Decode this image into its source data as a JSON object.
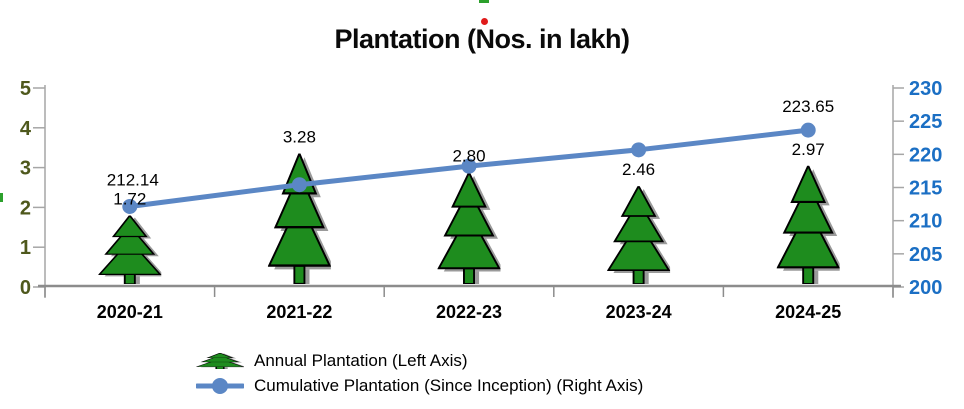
{
  "title": "Plantation (Nos. in lakh)",
  "colors": {
    "tree_green": "#1e8c1e",
    "tree_outline": "#000000",
    "tree_shadow": "#9a9a9a",
    "line_blue": "#5b87c5",
    "left_axis_label": "#4e581c",
    "right_axis_label": "#1b6fc4",
    "axis_line_gray": "#a6a6a6",
    "category_axis_gray": "#8c8c8c",
    "data_label": "#000000",
    "red_dot": "#e01b1b",
    "speck_green": "#2ca02c"
  },
  "chart_data": {
    "type": "combo",
    "categories": [
      "2020-21",
      "2021-22",
      "2022-23",
      "2023-24",
      "2024-25"
    ],
    "series": [
      {
        "name": "Annual Plantation (Left Axis)",
        "type": "pictograph-bar",
        "marker": "pine-tree",
        "axis": "left",
        "values": [
          1.72,
          3.28,
          2.8,
          2.46,
          2.97
        ],
        "labels": [
          "1.72",
          "3.28",
          "2.80",
          "2.46",
          "2.97"
        ]
      },
      {
        "name": "Cumulative Plantation (Since Inception) (Right Axis)",
        "type": "line",
        "axis": "right",
        "values": [
          212.14,
          215.42,
          218.22,
          220.68,
          223.65
        ],
        "first_label": "212.14",
        "last_label": "223.65"
      }
    ],
    "left_axis": {
      "min": 0,
      "max": 5,
      "step": 1,
      "ticks": [
        "0",
        "1",
        "2",
        "3",
        "4",
        "5"
      ]
    },
    "right_axis": {
      "min": 200,
      "max": 230,
      "step": 5,
      "ticks": [
        "200",
        "205",
        "210",
        "215",
        "220",
        "225",
        "230"
      ]
    },
    "grid": false,
    "legend_position": "bottom-left"
  },
  "legend": {
    "items": [
      {
        "label": "Annual Plantation (Left Axis)",
        "icon": "pine-tree-icon"
      },
      {
        "label": "Cumulative Plantation (Since Inception) (Right Axis)",
        "icon": "line-marker-icon"
      }
    ]
  }
}
